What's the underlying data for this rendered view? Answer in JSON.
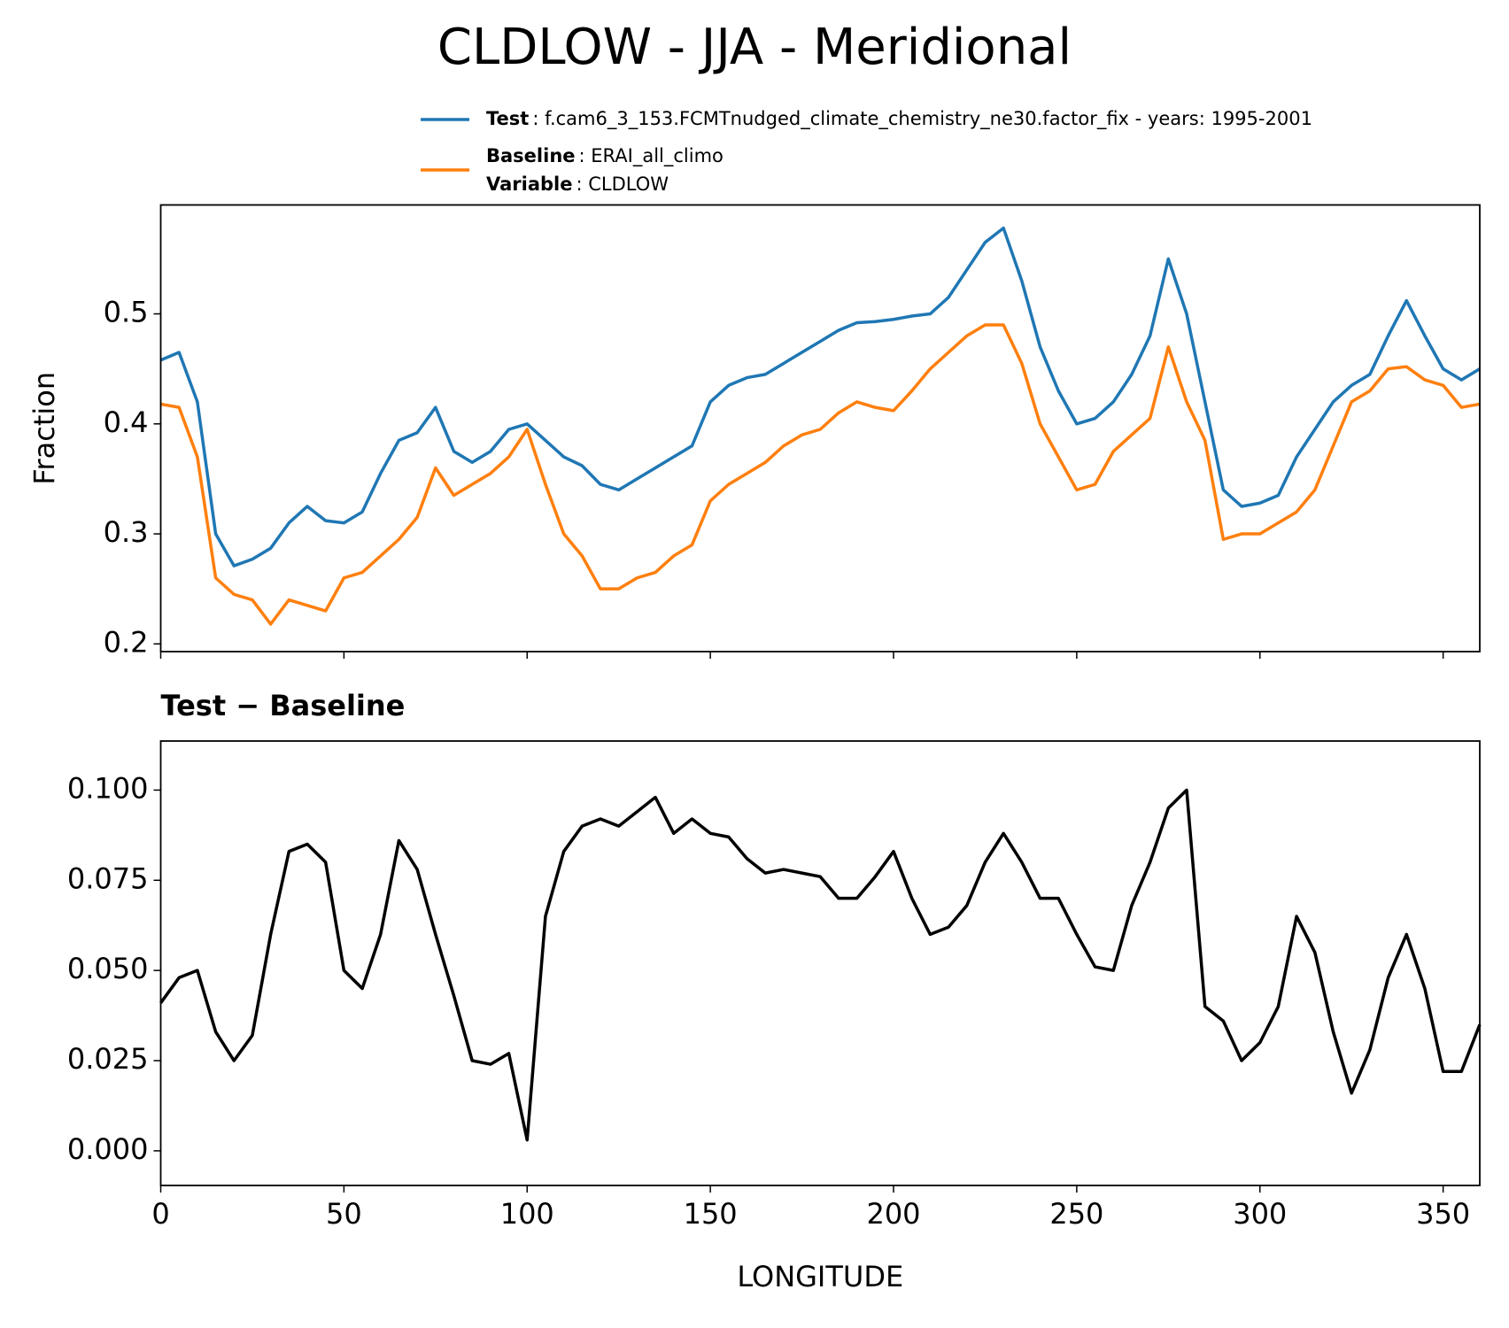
{
  "title": "CLDLOW - JJA - Meridional",
  "chart_data": [
    {
      "type": "line",
      "ylabel": "Fraction",
      "x": [
        0,
        5,
        10,
        15,
        20,
        25,
        30,
        35,
        40,
        45,
        50,
        55,
        60,
        65,
        70,
        75,
        80,
        85,
        90,
        95,
        100,
        105,
        110,
        115,
        120,
        125,
        130,
        135,
        140,
        145,
        150,
        155,
        160,
        165,
        170,
        175,
        180,
        185,
        190,
        195,
        200,
        205,
        210,
        215,
        220,
        225,
        230,
        235,
        240,
        245,
        250,
        255,
        260,
        265,
        270,
        275,
        280,
        285,
        290,
        295,
        300,
        305,
        310,
        315,
        320,
        325,
        330,
        335,
        340,
        345,
        350,
        355,
        360
      ],
      "series": [
        {
          "name": "Test",
          "description": ": f.cam6_3_153.FCMTnudged_climate_chemistry_ne30.factor_fix - years: 1995-2001",
          "color": "#1f77b4",
          "values": [
            0.458,
            0.465,
            0.42,
            0.3,
            0.271,
            0.277,
            0.287,
            0.31,
            0.325,
            0.312,
            0.31,
            0.32,
            0.355,
            0.385,
            0.392,
            0.415,
            0.375,
            0.365,
            0.375,
            0.395,
            0.4,
            0.385,
            0.37,
            0.362,
            0.345,
            0.34,
            0.35,
            0.36,
            0.37,
            0.38,
            0.42,
            0.435,
            0.442,
            0.445,
            0.455,
            0.465,
            0.475,
            0.485,
            0.492,
            0.493,
            0.495,
            0.498,
            0.5,
            0.515,
            0.54,
            0.565,
            0.578,
            0.53,
            0.47,
            0.43,
            0.4,
            0.405,
            0.42,
            0.445,
            0.48,
            0.55,
            0.5,
            0.42,
            0.34,
            0.325,
            0.328,
            0.335,
            0.37,
            0.395,
            0.42,
            0.435,
            0.445,
            0.48,
            0.512,
            0.48,
            0.45,
            0.44,
            0.45
          ]
        },
        {
          "name": "Baseline",
          "description": ": ERAI_all_climo",
          "color": "#ff7f0e",
          "values": [
            0.418,
            0.415,
            0.37,
            0.26,
            0.245,
            0.24,
            0.218,
            0.24,
            0.235,
            0.23,
            0.26,
            0.265,
            0.28,
            0.295,
            0.315,
            0.36,
            0.335,
            0.345,
            0.355,
            0.37,
            0.395,
            0.345,
            0.3,
            0.28,
            0.25,
            0.25,
            0.26,
            0.265,
            0.28,
            0.29,
            0.33,
            0.345,
            0.355,
            0.365,
            0.38,
            0.39,
            0.395,
            0.41,
            0.42,
            0.415,
            0.412,
            0.43,
            0.45,
            0.465,
            0.48,
            0.49,
            0.49,
            0.455,
            0.4,
            0.37,
            0.34,
            0.345,
            0.375,
            0.39,
            0.405,
            0.47,
            0.42,
            0.385,
            0.295,
            0.3,
            0.3,
            0.31,
            0.32,
            0.34,
            0.38,
            0.42,
            0.43,
            0.45,
            0.452,
            0.44,
            0.435,
            0.415,
            0.418
          ]
        }
      ],
      "variable": {
        "name": "Variable",
        "description": ": CLDLOW"
      },
      "xlim": [
        0,
        360
      ],
      "xticks": [
        0,
        50,
        100,
        150,
        200,
        250,
        300,
        350
      ],
      "ylim": [
        0.193,
        0.599
      ],
      "yticks": [
        0.2,
        0.3,
        0.4,
        0.5
      ]
    },
    {
      "type": "line",
      "title": "Test − Baseline",
      "xlabel": "LONGITUDE",
      "x": [
        0,
        5,
        10,
        15,
        20,
        25,
        30,
        35,
        40,
        45,
        50,
        55,
        60,
        65,
        70,
        75,
        80,
        85,
        90,
        95,
        100,
        105,
        110,
        115,
        120,
        125,
        130,
        135,
        140,
        145,
        150,
        155,
        160,
        165,
        170,
        175,
        180,
        185,
        190,
        195,
        200,
        205,
        210,
        215,
        220,
        225,
        230,
        235,
        240,
        245,
        250,
        255,
        260,
        265,
        270,
        275,
        280,
        285,
        290,
        295,
        300,
        305,
        310,
        315,
        320,
        325,
        330,
        335,
        340,
        345,
        350,
        355,
        360
      ],
      "color": "#000000",
      "values": [
        0.041,
        0.048,
        0.05,
        0.033,
        0.025,
        0.032,
        0.06,
        0.083,
        0.085,
        0.08,
        0.05,
        0.045,
        0.06,
        0.086,
        0.078,
        0.06,
        0.043,
        0.025,
        0.024,
        0.027,
        0.003,
        0.065,
        0.083,
        0.09,
        0.092,
        0.09,
        0.094,
        0.098,
        0.088,
        0.092,
        0.088,
        0.087,
        0.081,
        0.077,
        0.078,
        0.077,
        0.076,
        0.07,
        0.07,
        0.076,
        0.083,
        0.07,
        0.06,
        0.062,
        0.068,
        0.08,
        0.088,
        0.08,
        0.07,
        0.07,
        0.06,
        0.051,
        0.05,
        0.068,
        0.08,
        0.095,
        0.1,
        0.04,
        0.036,
        0.025,
        0.03,
        0.04,
        0.065,
        0.055,
        0.033,
        0.016,
        0.028,
        0.048,
        0.06,
        0.045,
        0.022,
        0.022,
        0.035
      ],
      "xlim": [
        0,
        360
      ],
      "xticks": [
        0,
        50,
        100,
        150,
        200,
        250,
        300,
        350
      ],
      "ylim": [
        -0.0096,
        0.1136
      ],
      "yticks": [
        {
          "value": 0,
          "label": "0.000"
        },
        {
          "value": 0.025,
          "label": "0.025"
        },
        {
          "value": 0.05,
          "label": "0.050"
        },
        {
          "value": 0.075,
          "label": "0.075"
        },
        {
          "value": 0.1,
          "label": "0.100"
        }
      ]
    }
  ]
}
